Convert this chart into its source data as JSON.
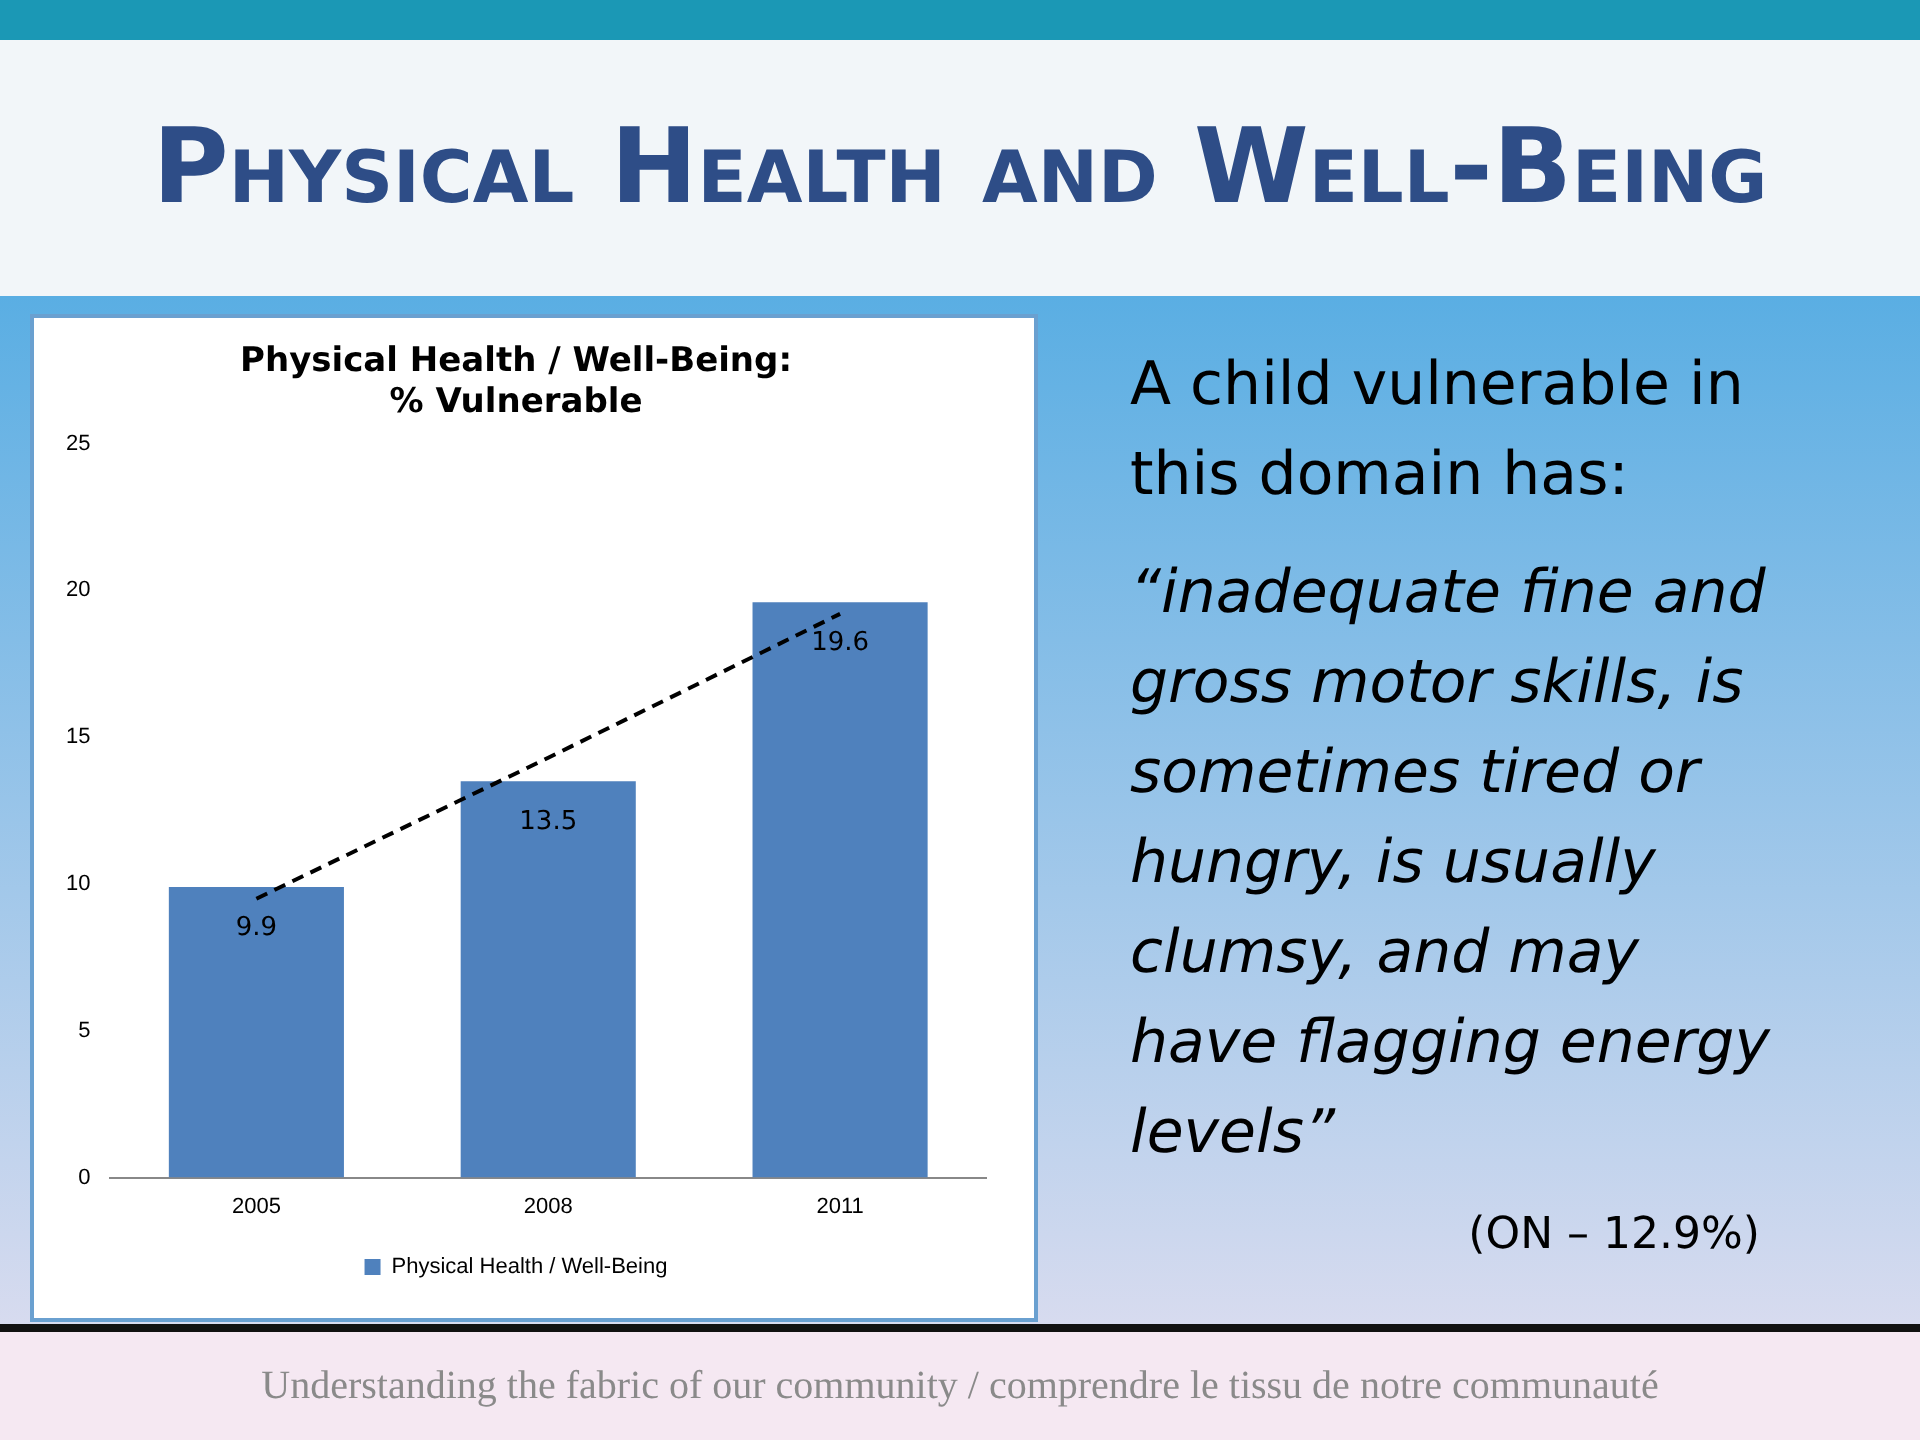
{
  "chart_data": {
    "type": "bar",
    "title": "Physical Health and Well-Being",
    "subtitle": "Physical Health / Well-Being:\n% Vulnerable",
    "categories": [
      "2005",
      "2008",
      "2011"
    ],
    "series": [
      {
        "name": "Physical Health / Well-Being",
        "color": "#4f81bd",
        "values": [
          9.9,
          13.5,
          19.6
        ],
        "value_labels": [
          "9.9",
          "13.5",
          "19.6"
        ]
      },
      {
        "type": "line",
        "color": "#000000",
        "values": [
          9.5,
          14.3,
          19.2
        ],
        "line_style": "dashed",
        "marker": "none"
      }
    ],
    "ylim": [
      0,
      25
    ],
    "yticks": [
      0,
      5,
      10,
      15,
      20,
      25
    ],
    "grid": false,
    "legend": "bottom",
    "annotations": [
      "A child vulnerable in this domain has:",
      "“inadequate fine and gross motor skills, is sometimes tired or hungry, is usually clumsy, and may have flagging energy levels”",
      "(ON – 12.9%)",
      "Understanding the fabric of our community / comprendre le tissu de notre communauté"
    ]
  }
}
